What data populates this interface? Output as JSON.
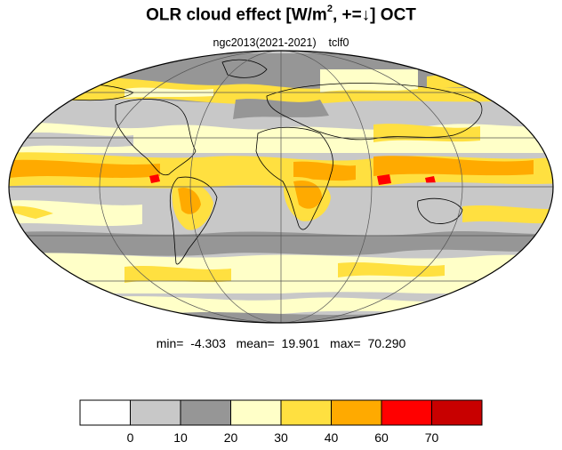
{
  "map": {
    "title_main": "OLR cloud effect [W/m",
    "title_sup": "2",
    "title_tail": ", +=↓]  OCT",
    "subtitle": "ngc2013(2021-2021)    tclf0",
    "stats": "min=  -4.303   mean=  19.901   max=  70.290",
    "projection": "mollweide",
    "levels": [
      0,
      10,
      20,
      30,
      40,
      60,
      70
    ],
    "colors": [
      "#ffffff",
      "#c8c8c8",
      "#969696",
      "#ffffc8",
      "#ffe040",
      "#ffaa00",
      "#ff0000",
      "#c80000"
    ]
  },
  "colorbar": {
    "labels": [
      "0",
      "10",
      "20",
      "30",
      "40",
      "60",
      "70"
    ]
  }
}
